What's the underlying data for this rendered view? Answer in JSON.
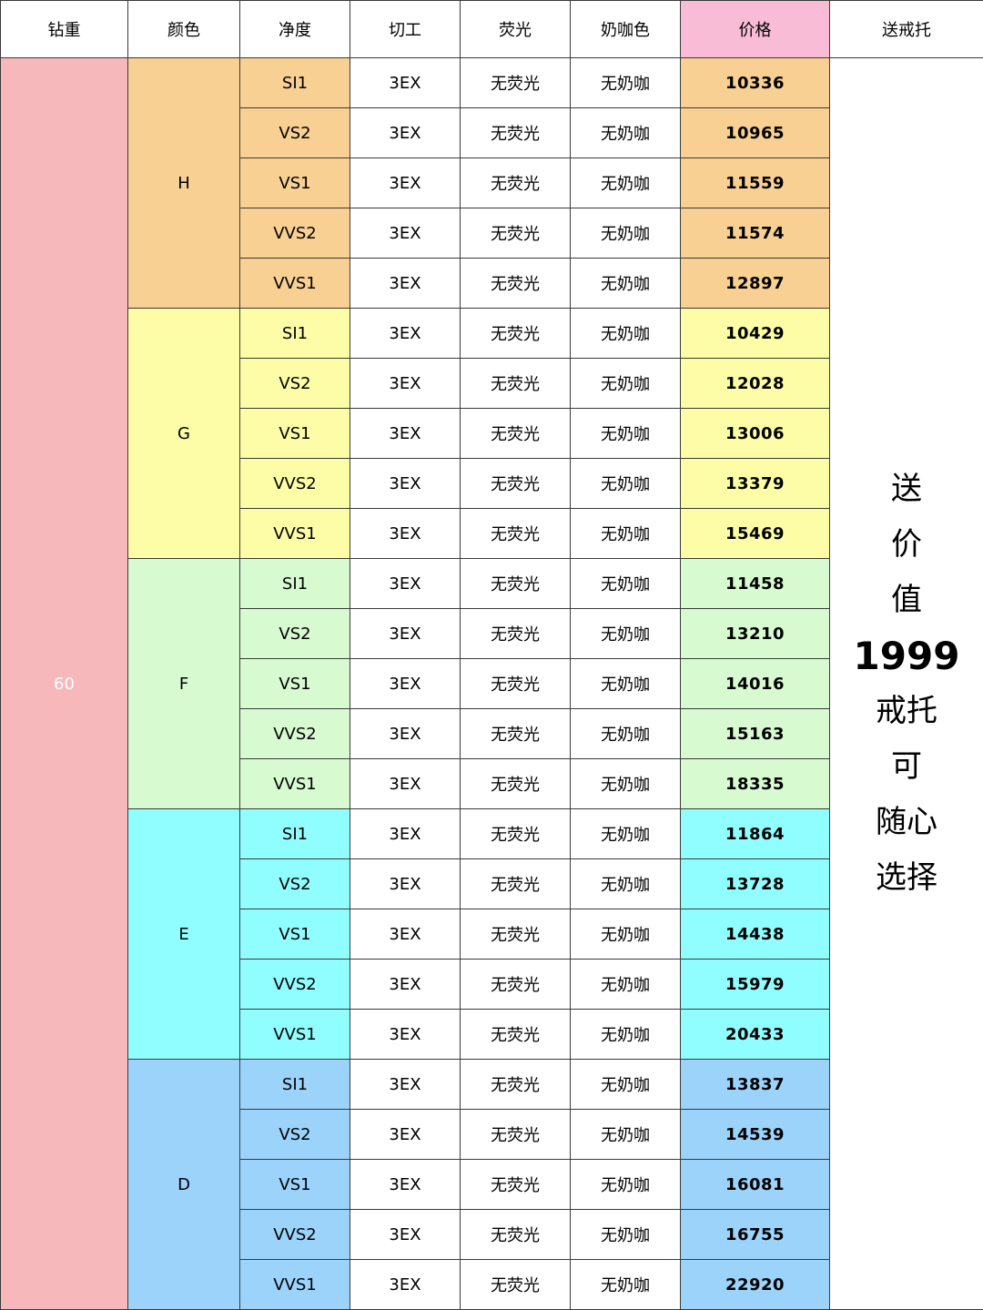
{
  "header": {
    "weight": "钻重",
    "color": "颜色",
    "clarity": "净度",
    "cut": "切工",
    "fluorescence": "荧光",
    "milky": "奶咖色",
    "price": "价格",
    "gift": "送戒托"
  },
  "weight": "60",
  "promo": [
    "送",
    "价",
    "值",
    "1999",
    "戒托",
    "可",
    "随心",
    "选择"
  ],
  "colors": {
    "H": "#f8d093",
    "G": "#fdfca7",
    "F": "#d7fad0",
    "E": "#90fefe",
    "D": "#9bd3fb",
    "weight": "#f7b8bc",
    "price_header": "#f8bcd6"
  },
  "groups": [
    {
      "color": "H",
      "rows": [
        {
          "clarity": "SI1",
          "cut": "3EX",
          "fluorescence": "无荧光",
          "milky": "无奶咖",
          "price": "10336"
        },
        {
          "clarity": "VS2",
          "cut": "3EX",
          "fluorescence": "无荧光",
          "milky": "无奶咖",
          "price": "10965"
        },
        {
          "clarity": "VS1",
          "cut": "3EX",
          "fluorescence": "无荧光",
          "milky": "无奶咖",
          "price": "11559"
        },
        {
          "clarity": "VVS2",
          "cut": "3EX",
          "fluorescence": "无荧光",
          "milky": "无奶咖",
          "price": "11574"
        },
        {
          "clarity": "VVS1",
          "cut": "3EX",
          "fluorescence": "无荧光",
          "milky": "无奶咖",
          "price": "12897"
        }
      ]
    },
    {
      "color": "G",
      "rows": [
        {
          "clarity": "SI1",
          "cut": "3EX",
          "fluorescence": "无荧光",
          "milky": "无奶咖",
          "price": "10429"
        },
        {
          "clarity": "VS2",
          "cut": "3EX",
          "fluorescence": "无荧光",
          "milky": "无奶咖",
          "price": "12028"
        },
        {
          "clarity": "VS1",
          "cut": "3EX",
          "fluorescence": "无荧光",
          "milky": "无奶咖",
          "price": "13006"
        },
        {
          "clarity": "VVS2",
          "cut": "3EX",
          "fluorescence": "无荧光",
          "milky": "无奶咖",
          "price": "13379"
        },
        {
          "clarity": "VVS1",
          "cut": "3EX",
          "fluorescence": "无荧光",
          "milky": "无奶咖",
          "price": "15469"
        }
      ]
    },
    {
      "color": "F",
      "rows": [
        {
          "clarity": "SI1",
          "cut": "3EX",
          "fluorescence": "无荧光",
          "milky": "无奶咖",
          "price": "11458"
        },
        {
          "clarity": "VS2",
          "cut": "3EX",
          "fluorescence": "无荧光",
          "milky": "无奶咖",
          "price": "13210"
        },
        {
          "clarity": "VS1",
          "cut": "3EX",
          "fluorescence": "无荧光",
          "milky": "无奶咖",
          "price": "14016"
        },
        {
          "clarity": "VVS2",
          "cut": "3EX",
          "fluorescence": "无荧光",
          "milky": "无奶咖",
          "price": "15163"
        },
        {
          "clarity": "VVS1",
          "cut": "3EX",
          "fluorescence": "无荧光",
          "milky": "无奶咖",
          "price": "18335"
        }
      ]
    },
    {
      "color": "E",
      "rows": [
        {
          "clarity": "SI1",
          "cut": "3EX",
          "fluorescence": "无荧光",
          "milky": "无奶咖",
          "price": "11864"
        },
        {
          "clarity": "VS2",
          "cut": "3EX",
          "fluorescence": "无荧光",
          "milky": "无奶咖",
          "price": "13728"
        },
        {
          "clarity": "VS1",
          "cut": "3EX",
          "fluorescence": "无荧光",
          "milky": "无奶咖",
          "price": "14438"
        },
        {
          "clarity": "VVS2",
          "cut": "3EX",
          "fluorescence": "无荧光",
          "milky": "无奶咖",
          "price": "15979"
        },
        {
          "clarity": "VVS1",
          "cut": "3EX",
          "fluorescence": "无荧光",
          "milky": "无奶咖",
          "price": "20433"
        }
      ]
    },
    {
      "color": "D",
      "rows": [
        {
          "clarity": "SI1",
          "cut": "3EX",
          "fluorescence": "无荧光",
          "milky": "无奶咖",
          "price": "13837"
        },
        {
          "clarity": "VS2",
          "cut": "3EX",
          "fluorescence": "无荧光",
          "milky": "无奶咖",
          "price": "14539"
        },
        {
          "clarity": "VS1",
          "cut": "3EX",
          "fluorescence": "无荧光",
          "milky": "无奶咖",
          "price": "16081"
        },
        {
          "clarity": "VVS2",
          "cut": "3EX",
          "fluorescence": "无荧光",
          "milky": "无奶咖",
          "price": "16755"
        },
        {
          "clarity": "VVS1",
          "cut": "3EX",
          "fluorescence": "无荧光",
          "milky": "无奶咖",
          "price": "22920"
        }
      ]
    }
  ]
}
